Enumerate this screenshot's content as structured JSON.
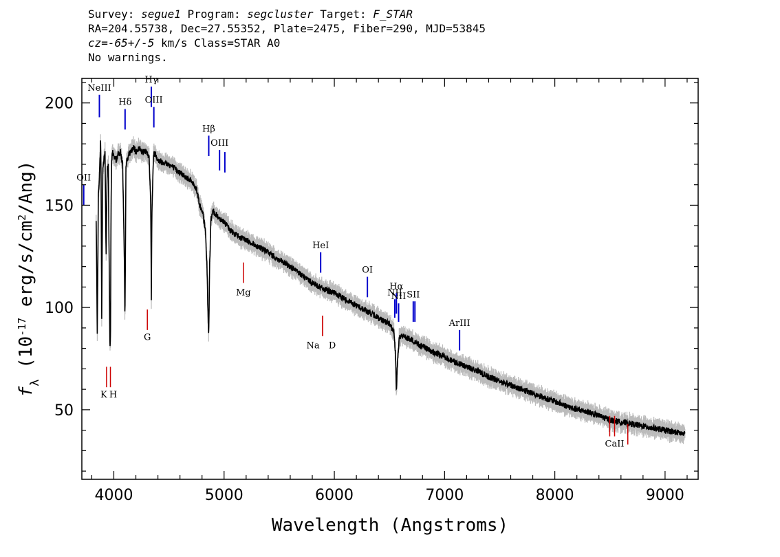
{
  "header": {
    "survey_label": "Survey:",
    "survey": "segue1",
    "program_label": "Program:",
    "program": "segcluster",
    "target_label": "Target:",
    "target": "F_STAR",
    "line2": "RA=204.55738, Dec=27.55352, Plate=2475, Fiber=290, MJD=53845",
    "cz_label": "cz=",
    "cz_value": "-65+/-5",
    "cz_rest": " km/s Class=STAR A0",
    "line4": "No warnings."
  },
  "chart_data": {
    "type": "line",
    "xlabel": "Wavelength (Angstroms)",
    "ylabel": "f_λ (10^-17 erg/s/cm^2/Ang)",
    "xlim": [
      3710,
      9300
    ],
    "ylim": [
      16,
      212
    ],
    "xticks": [
      4000,
      5000,
      6000,
      7000,
      8000,
      9000
    ],
    "yticks": [
      50,
      100,
      150,
      200
    ],
    "colors": {
      "spectrum": "#000000",
      "error": "#bbbbbb",
      "emission": "#0000cc",
      "absorption": "#cc0000"
    },
    "series": [
      {
        "x": [
          3840,
          3850,
          3860,
          3870,
          3880,
          3885,
          3890,
          3900,
          3910,
          3920,
          3930,
          3940,
          3950,
          3960,
          3965,
          3970,
          3975,
          3980,
          3990,
          4000,
          4020,
          4040,
          4060,
          4080,
          4095,
          4101,
          4110,
          4130,
          4150,
          4180,
          4200,
          4230,
          4260,
          4290,
          4320,
          4335,
          4340,
          4345,
          4360,
          4380,
          4400,
          4450,
          4500,
          4550,
          4600,
          4650,
          4700,
          4750,
          4780,
          4810,
          4830,
          4845,
          4855,
          4861,
          4868,
          4880,
          4900,
          4950,
          5000,
          5050,
          5100,
          5150,
          5200,
          5300,
          5400,
          5500,
          5600,
          5700,
          5800,
          5900,
          6000,
          6100,
          6200,
          6300,
          6400,
          6500,
          6540,
          6555,
          6563,
          6572,
          6590,
          6620,
          6700,
          6800,
          6900,
          7000,
          7100,
          7200,
          7300,
          7400,
          7500,
          7600,
          7700,
          7800,
          7900,
          8000,
          8100,
          8200,
          8300,
          8400,
          8500,
          8600,
          8700,
          8800,
          8900,
          9000,
          9100,
          9180
        ],
        "y": [
          142,
          88,
          155,
          165,
          182,
          160,
          95,
          168,
          172,
          176,
          125,
          168,
          170,
          108,
          78,
          88,
          150,
          172,
          176,
          174,
          172,
          175,
          176,
          170,
          125,
          92,
          170,
          174,
          176,
          178,
          176,
          178,
          176,
          176,
          174,
          150,
          105,
          145,
          175,
          175,
          172,
          171,
          170,
          168,
          166,
          164,
          162,
          158,
          150,
          145,
          138,
          120,
          95,
          86,
          118,
          143,
          147,
          144,
          142,
          138,
          136,
          134,
          133,
          130,
          127,
          123,
          120,
          116,
          112,
          109,
          107,
          104,
          101,
          98,
          95,
          92,
          88,
          78,
          58,
          72,
          86,
          86,
          84,
          81,
          78,
          76,
          73,
          71,
          69,
          66,
          64,
          62,
          60,
          58,
          56,
          54,
          52,
          50,
          49,
          47,
          45,
          44,
          43,
          42,
          41,
          40,
          39,
          38
        ]
      }
    ],
    "emission_lines": [
      {
        "label": "OII",
        "x": 3727,
        "y1": 150,
        "y2": 160,
        "ly": 162
      },
      {
        "label": "NeIII",
        "x": 3869,
        "y1": 193,
        "y2": 204,
        "ly": 206
      },
      {
        "label": "Hδ",
        "x": 4102,
        "y1": 187,
        "y2": 197,
        "ly": 199
      },
      {
        "label": "Hγ",
        "x": 4340,
        "y1": 198,
        "y2": 208,
        "ly": 210
      },
      {
        "label": "OIII",
        "x": 4363,
        "y1": 188,
        "y2": 198,
        "ly": 200
      },
      {
        "label": "Hβ",
        "x": 4861,
        "y1": 174,
        "y2": 184,
        "ly": 186
      },
      {
        "label": "OIII",
        "x": 4959,
        "y1": 167,
        "y2": 177,
        "ly": 179
      },
      {
        "label": "",
        "x": 5007,
        "y1": 166,
        "y2": 176,
        "ly": 178
      },
      {
        "label": "HeI",
        "x": 5876,
        "y1": 117,
        "y2": 127,
        "ly": 129
      },
      {
        "label": "OI",
        "x": 6300,
        "y1": 105,
        "y2": 115,
        "ly": 117
      },
      {
        "label": "NII",
        "x": 6548,
        "y1": 95,
        "y2": 104,
        "ly": 106
      },
      {
        "label": "Hα",
        "x": 6563,
        "y1": 97,
        "y2": 107,
        "ly": 109
      },
      {
        "label": "NII",
        "x": 6583,
        "y1": 93,
        "y2": 102,
        "ly": 104
      },
      {
        "label": "SII",
        "x": 6716,
        "y1": 93,
        "y2": 103,
        "ly": 105
      },
      {
        "label": "",
        "x": 6731,
        "y1": 93,
        "y2": 103,
        "ly": 105
      },
      {
        "label": "ArIII",
        "x": 7136,
        "y1": 79,
        "y2": 89,
        "ly": 91
      }
    ],
    "absorption_lines": [
      {
        "label": "K",
        "x": 3934,
        "y1": 61,
        "y2": 71,
        "ly": 56
      },
      {
        "label": "H",
        "x": 3969,
        "y1": 61,
        "y2": 71,
        "ly": 56
      },
      {
        "label": "G",
        "x": 4304,
        "y1": 89,
        "y2": 99,
        "ly": 84
      },
      {
        "label": "Mg",
        "x": 5175,
        "y1": 112,
        "y2": 122,
        "ly": 106
      },
      {
        "label": "Na",
        "x": 5894,
        "y1": 86,
        "y2": 96,
        "ly": 80
      },
      {
        "label": "D",
        "x": 5894,
        "y1": 86,
        "y2": 96,
        "ly": 80
      },
      {
        "label": "",
        "x": 8498,
        "y1": 37,
        "y2": 47,
        "ly": 32
      },
      {
        "label": "CaII",
        "x": 8542,
        "y1": 37,
        "y2": 47,
        "ly": 32
      },
      {
        "label": "",
        "x": 8662,
        "y1": 33,
        "y2": 43,
        "ly": 28
      }
    ]
  }
}
